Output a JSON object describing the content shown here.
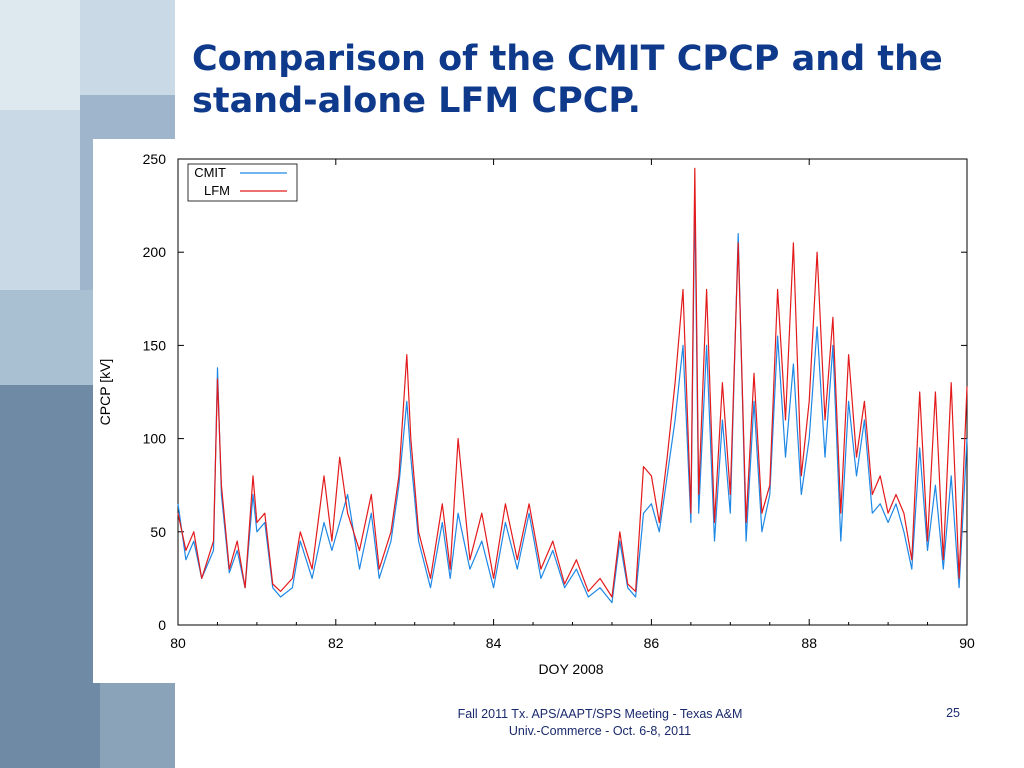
{
  "slide": {
    "title": "Comparison of the CMIT CPCP and the stand-alone LFM CPCP.",
    "footer_text": "Fall 2011 Tx. APS/AAPT/SPS Meeting - Texas A&M Univ.-Commerce - Oct. 6-8, 2011",
    "page_number": "25",
    "colors": {
      "title": "#0f3a8c",
      "sidebar_dark": "#7f9ab2",
      "sidebar_light": "#c8d8e4"
    }
  },
  "chart_data": {
    "type": "line",
    "title": "",
    "xlabel": "DOY 2008",
    "ylabel": "CPCP [kV]",
    "xlim": [
      80,
      90
    ],
    "ylim": [
      0,
      250
    ],
    "x_ticks": [
      80,
      82,
      84,
      86,
      88,
      90
    ],
    "y_ticks": [
      0,
      50,
      100,
      150,
      200,
      250
    ],
    "legend_position": "top-left",
    "grid": false,
    "series": [
      {
        "name": "CMIT",
        "color": "#1e88e5",
        "x": [
          80.0,
          80.1,
          80.2,
          80.3,
          80.45,
          80.5,
          80.55,
          80.65,
          80.75,
          80.85,
          80.95,
          81.0,
          81.1,
          81.2,
          81.3,
          81.45,
          81.55,
          81.7,
          81.85,
          81.95,
          82.05,
          82.15,
          82.3,
          82.45,
          82.55,
          82.7,
          82.8,
          82.9,
          82.95,
          83.05,
          83.2,
          83.35,
          83.45,
          83.55,
          83.7,
          83.85,
          84.0,
          84.15,
          84.3,
          84.45,
          84.6,
          84.75,
          84.9,
          85.05,
          85.2,
          85.35,
          85.5,
          85.6,
          85.7,
          85.8,
          85.9,
          86.0,
          86.1,
          86.2,
          86.3,
          86.4,
          86.5,
          86.55,
          86.6,
          86.7,
          86.8,
          86.9,
          87.0,
          87.1,
          87.2,
          87.3,
          87.4,
          87.5,
          87.6,
          87.7,
          87.8,
          87.9,
          88.0,
          88.1,
          88.2,
          88.3,
          88.4,
          88.5,
          88.6,
          88.7,
          88.8,
          88.9,
          89.0,
          89.1,
          89.2,
          89.3,
          89.4,
          89.5,
          89.6,
          89.7,
          89.8,
          89.9,
          90.0
        ],
        "values": [
          65,
          35,
          45,
          25,
          40,
          138,
          70,
          28,
          40,
          20,
          70,
          50,
          55,
          20,
          15,
          20,
          45,
          25,
          55,
          40,
          55,
          70,
          30,
          60,
          25,
          45,
          75,
          120,
          90,
          45,
          20,
          55,
          25,
          60,
          30,
          45,
          20,
          55,
          30,
          60,
          25,
          40,
          20,
          30,
          15,
          20,
          12,
          45,
          20,
          15,
          60,
          65,
          50,
          80,
          110,
          150,
          55,
          230,
          60,
          150,
          45,
          110,
          60,
          210,
          45,
          120,
          50,
          70,
          155,
          90,
          140,
          70,
          100,
          160,
          90,
          150,
          45,
          120,
          80,
          110,
          60,
          65,
          55,
          65,
          50,
          30,
          95,
          40,
          75,
          30,
          80,
          20,
          100
        ]
      },
      {
        "name": "LFM",
        "color": "#e31a1c",
        "x": [
          80.0,
          80.1,
          80.2,
          80.3,
          80.45,
          80.5,
          80.55,
          80.65,
          80.75,
          80.85,
          80.95,
          81.0,
          81.1,
          81.2,
          81.3,
          81.45,
          81.55,
          81.7,
          81.85,
          81.95,
          82.05,
          82.15,
          82.3,
          82.45,
          82.55,
          82.7,
          82.8,
          82.9,
          82.95,
          83.05,
          83.2,
          83.35,
          83.45,
          83.55,
          83.7,
          83.85,
          84.0,
          84.15,
          84.3,
          84.45,
          84.6,
          84.75,
          84.9,
          85.05,
          85.2,
          85.35,
          85.5,
          85.6,
          85.7,
          85.8,
          85.9,
          86.0,
          86.1,
          86.2,
          86.3,
          86.4,
          86.5,
          86.55,
          86.6,
          86.7,
          86.8,
          86.9,
          87.0,
          87.1,
          87.2,
          87.3,
          87.4,
          87.5,
          87.6,
          87.7,
          87.8,
          87.9,
          88.0,
          88.1,
          88.2,
          88.3,
          88.4,
          88.5,
          88.6,
          88.7,
          88.8,
          88.9,
          89.0,
          89.1,
          89.2,
          89.3,
          89.4,
          89.5,
          89.6,
          89.7,
          89.8,
          89.9,
          90.0
        ],
        "values": [
          60,
          40,
          50,
          25,
          45,
          132,
          75,
          30,
          45,
          20,
          80,
          55,
          60,
          22,
          18,
          25,
          50,
          30,
          80,
          45,
          90,
          60,
          40,
          70,
          30,
          50,
          80,
          145,
          100,
          50,
          25,
          65,
          30,
          100,
          35,
          60,
          25,
          65,
          35,
          65,
          30,
          45,
          22,
          35,
          18,
          25,
          15,
          50,
          22,
          18,
          85,
          80,
          55,
          90,
          130,
          180,
          60,
          245,
          70,
          180,
          55,
          130,
          70,
          205,
          55,
          135,
          60,
          75,
          180,
          110,
          205,
          80,
          120,
          200,
          110,
          165,
          60,
          145,
          90,
          120,
          70,
          80,
          60,
          70,
          60,
          35,
          125,
          45,
          125,
          35,
          130,
          25,
          128
        ]
      }
    ]
  }
}
